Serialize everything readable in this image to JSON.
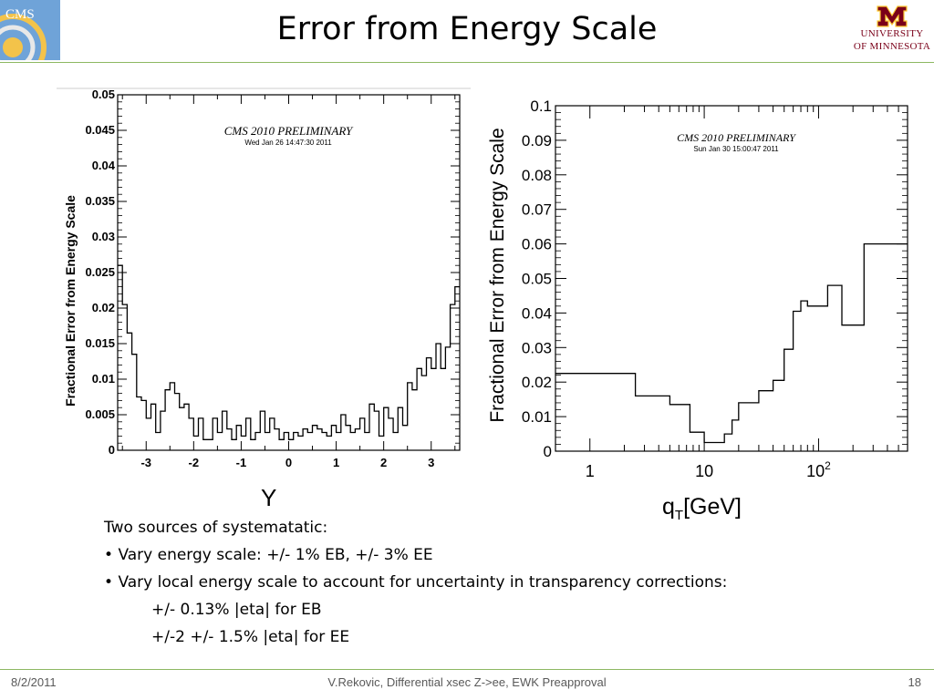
{
  "slide": {
    "title": "Error from Energy Scale",
    "logo_left": "CMS",
    "logo_right_line1": "UNIVERSITY",
    "logo_right_line2": "OF MINNESOTA",
    "footer_date": "8/2/2011",
    "footer_center": "V.Rekovic, Differential xsec Z->ee, EWK Preapproval",
    "page_number": "18",
    "accent_color": "#8db862",
    "umn_maroon": "#7a0019"
  },
  "text": {
    "line1": "Two sources of systematatic:",
    "line2": "Vary energy scale:  +/- 1% EB, +/- 3% EE",
    "line3": "Vary local energy scale to account for uncertainty in transparency corrections:",
    "line4": "+/- 0.13% |eta| for EB",
    "line5": "+/-2 +/- 1.5% |eta| for EE"
  },
  "chart_data": [
    {
      "type": "histogram",
      "title": "CMS 2010 PRELIMINARY",
      "subtitle": "Wed Jan 26 14:47:30 2011",
      "xlabel": "Y",
      "ylabel": "Fractional Error from Energy Scale",
      "xlim": [
        -3.6,
        3.6
      ],
      "ylim": [
        0,
        0.05
      ],
      "xticks": [
        "-3",
        "-2",
        "-1",
        "0",
        "1",
        "2",
        "3"
      ],
      "yticks": [
        "0",
        "0.005",
        "0.01",
        "0.015",
        "0.02",
        "0.025",
        "0.03",
        "0.035",
        "0.04",
        "0.045",
        "0.05"
      ],
      "bin_width": 0.1,
      "values": [
        0.026,
        0.0205,
        0.0165,
        0.0135,
        0.0075,
        0.007,
        0.0045,
        0.0065,
        0.0025,
        0.0055,
        0.0085,
        0.0095,
        0.008,
        0.006,
        0.0065,
        0.0045,
        0.002,
        0.0045,
        0.0015,
        0.0015,
        0.0045,
        0.0025,
        0.0055,
        0.003,
        0.0015,
        0.0035,
        0.002,
        0.0045,
        0.0015,
        0.0025,
        0.0055,
        0.0025,
        0.0045,
        0.003,
        0.0015,
        0.0025,
        0.0015,
        0.0025,
        0.002,
        0.003,
        0.0025,
        0.0035,
        0.003,
        0.0025,
        0.002,
        0.0035,
        0.0025,
        0.005,
        0.0035,
        0.0025,
        0.003,
        0.0045,
        0.0025,
        0.0065,
        0.0055,
        0.002,
        0.006,
        0.0045,
        0.0025,
        0.006,
        0.0035,
        0.0095,
        0.0085,
        0.0115,
        0.0105,
        0.013,
        0.0115,
        0.015,
        0.0115,
        0.0145,
        0.0205,
        0.023
      ]
    },
    {
      "type": "histogram",
      "title": "CMS 2010 PRELIMINARY",
      "subtitle": "Sun Jan 30 15:00:47 2011",
      "xlabel": "qT[GeV]",
      "ylabel": "Fractional Error from Energy Scale",
      "xscale": "log",
      "xlim": [
        0.5,
        600
      ],
      "ylim": [
        0,
        0.1
      ],
      "xticks": [
        "1",
        "10",
        "10²"
      ],
      "yticks": [
        "0",
        "0.01",
        "0.02",
        "0.03",
        "0.04",
        "0.05",
        "0.06",
        "0.07",
        "0.08",
        "0.09",
        "0.1"
      ],
      "bin_edges": [
        0.5,
        2.5,
        5,
        7.5,
        10,
        12.5,
        15,
        17.5,
        20,
        30,
        40,
        50,
        60,
        70,
        80,
        100,
        120,
        140,
        160,
        200,
        250,
        600
      ],
      "values": [
        0.0225,
        0.016,
        0.0135,
        0.0055,
        0.0025,
        0.0025,
        0.005,
        0.009,
        0.014,
        0.0175,
        0.0205,
        0.0295,
        0.0405,
        0.0435,
        0.042,
        0.042,
        0.048,
        0.048,
        0.0365,
        0.0365,
        0.06
      ]
    }
  ]
}
